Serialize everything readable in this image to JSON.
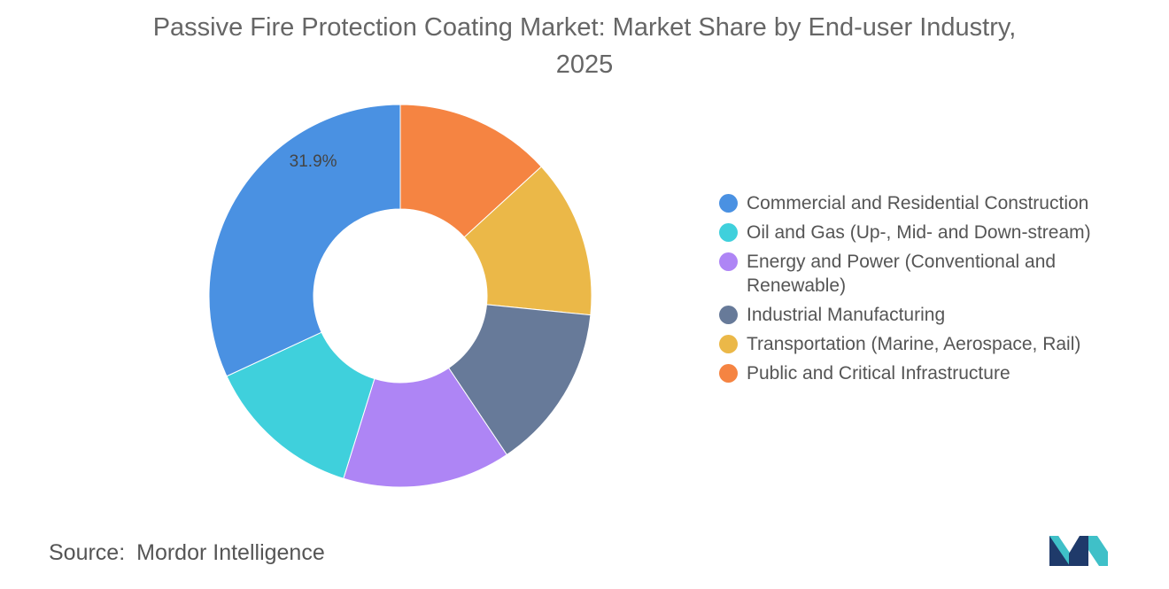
{
  "chart_data": {
    "type": "pie",
    "style": "donut",
    "title": "Passive Fire Protection Coating Market: Market Share by End-user Industry, 2025",
    "title_lines": [
      "Passive Fire Protection Coating Market: Market Share by End-user Industry,",
      "2025"
    ],
    "start_at": "12 o'clock, clockwise",
    "legend_position": "right",
    "slices": [
      {
        "name": "Public and Critical Infrastructure",
        "value": 13.2,
        "color": "#F58442",
        "label": ""
      },
      {
        "name": "Transportation (Marine, Aerospace, Rail)",
        "value": 13.4,
        "color": "#EBB848",
        "label": ""
      },
      {
        "name": "Industrial Manufacturing",
        "value": 14.0,
        "color": "#677A99",
        "label": ""
      },
      {
        "name": "Energy and Power (Conventional and Renewable)",
        "value": 14.2,
        "color": "#AE85F5",
        "label": ""
      },
      {
        "name": "Oil and Gas (Up-, Mid- and Down-stream)",
        "value": 13.3,
        "color": "#3FD0DC",
        "label": ""
      },
      {
        "name": "Commercial and Residential Construction",
        "value": 31.9,
        "color": "#4A91E2",
        "label": "31.9%"
      }
    ],
    "legend": [
      {
        "name": "Commercial and Residential Construction",
        "color": "#4A91E2"
      },
      {
        "name": "Oil and Gas (Up-, Mid- and Down-stream)",
        "color": "#3FD0DC"
      },
      {
        "name": "Energy and Power (Conventional and Renewable)",
        "color": "#AE85F5"
      },
      {
        "name": "Industrial Manufacturing",
        "color": "#677A99"
      },
      {
        "name": "Transportation (Marine, Aerospace, Rail)",
        "color": "#EBB848"
      },
      {
        "name": "Public and Critical Infrastructure",
        "color": "#F58442"
      }
    ]
  },
  "footer": {
    "source_label": "Source:",
    "source_name": "Mordor Intelligence",
    "logo_icon": "mordor-intelligence-logo-icon",
    "logo_colors": [
      "#1F3A6A",
      "#3FC0C8"
    ]
  }
}
